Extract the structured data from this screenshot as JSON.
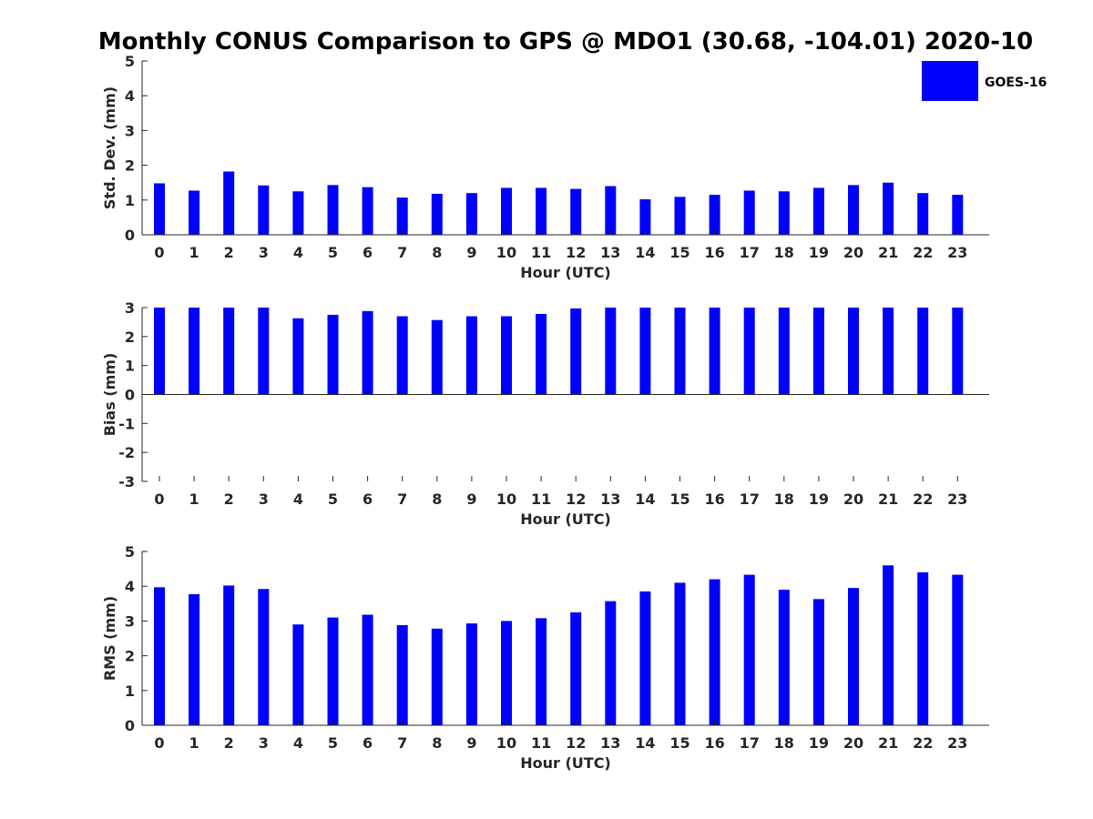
{
  "title": "Monthly CONUS Comparison to GPS @ MDO1 (30.68, -104.01) 2020-10",
  "colors": {
    "bar": "#0000ff",
    "axis": "#262626",
    "text": "#262626"
  },
  "legend": {
    "label": "GOES-16",
    "placement": "top-right"
  },
  "chart_data": [
    {
      "type": "bar",
      "title": "Monthly CONUS Comparison to GPS @ MDO1 (30.68, -104.01) 2020-10",
      "xlabel": "Hour (UTC)",
      "ylabel": "Std. Dev. (mm)",
      "ylim": [
        0,
        5
      ],
      "yticks": [
        0,
        1,
        2,
        3,
        4,
        5
      ],
      "categories": [
        "0",
        "1",
        "2",
        "3",
        "4",
        "5",
        "6",
        "7",
        "8",
        "9",
        "10",
        "11",
        "12",
        "13",
        "14",
        "15",
        "16",
        "17",
        "18",
        "19",
        "20",
        "21",
        "22",
        "23"
      ],
      "series": [
        {
          "name": "GOES-16",
          "values": [
            1.48,
            1.27,
            1.82,
            1.42,
            1.25,
            1.43,
            1.37,
            1.07,
            1.18,
            1.2,
            1.35,
            1.35,
            1.32,
            1.4,
            1.02,
            1.09,
            1.15,
            1.27,
            1.25,
            1.35,
            1.43,
            1.5,
            1.2,
            1.15
          ]
        }
      ]
    },
    {
      "type": "bar",
      "xlabel": "Hour (UTC)",
      "ylabel": "Bias (mm)",
      "ylim": [
        -3,
        3
      ],
      "yticks": [
        -3,
        -2,
        -1,
        0,
        1,
        2,
        3
      ],
      "categories": [
        "0",
        "1",
        "2",
        "3",
        "4",
        "5",
        "6",
        "7",
        "8",
        "9",
        "10",
        "11",
        "12",
        "13",
        "14",
        "15",
        "16",
        "17",
        "18",
        "19",
        "20",
        "21",
        "22",
        "23"
      ],
      "series": [
        {
          "name": "GOES-16",
          "values": [
            3.0,
            3.0,
            3.0,
            3.0,
            2.63,
            2.75,
            2.88,
            2.7,
            2.57,
            2.7,
            2.7,
            2.78,
            2.97,
            3.0,
            3.0,
            3.0,
            3.0,
            3.0,
            3.0,
            3.0,
            3.0,
            3.0,
            3.0,
            3.0
          ]
        }
      ]
    },
    {
      "type": "bar",
      "xlabel": "Hour (UTC)",
      "ylabel": "RMS (mm)",
      "ylim": [
        0,
        5
      ],
      "yticks": [
        0,
        1,
        2,
        3,
        4,
        5
      ],
      "categories": [
        "0",
        "1",
        "2",
        "3",
        "4",
        "5",
        "6",
        "7",
        "8",
        "9",
        "10",
        "11",
        "12",
        "13",
        "14",
        "15",
        "16",
        "17",
        "18",
        "19",
        "20",
        "21",
        "22",
        "23"
      ],
      "series": [
        {
          "name": "GOES-16",
          "values": [
            3.97,
            3.77,
            4.02,
            3.92,
            2.9,
            3.1,
            3.18,
            2.88,
            2.78,
            2.93,
            3.0,
            3.08,
            3.25,
            3.57,
            3.85,
            4.1,
            4.2,
            4.33,
            3.9,
            3.63,
            3.95,
            4.6,
            4.4,
            4.33
          ]
        }
      ]
    }
  ]
}
